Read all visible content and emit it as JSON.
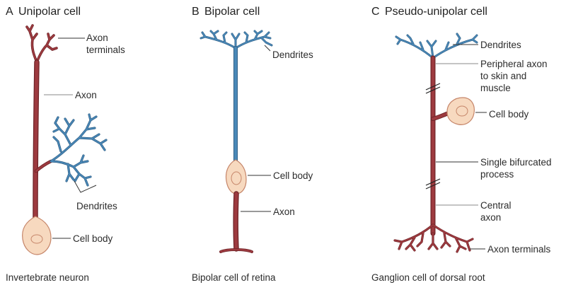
{
  "panels": [
    {
      "letter": "A",
      "title": "Unipolar cell",
      "labels": {
        "axon_terminals_1": "Axon",
        "axon_terminals_2": "terminals",
        "axon": "Axon",
        "dendrites": "Dendrites",
        "cell_body": "Cell body"
      },
      "caption": "Invertebrate neuron"
    },
    {
      "letter": "B",
      "title": "Bipolar cell",
      "labels": {
        "dendrites": "Dendrites",
        "cell_body": "Cell body",
        "axon": "Axon"
      },
      "caption": "Bipolar cell of retina"
    },
    {
      "letter": "C",
      "title": "Pseudo-unipolar cell",
      "labels": {
        "dendrites": "Dendrites",
        "peripheral_1": "Peripheral axon",
        "peripheral_2": "to skin and",
        "peripheral_3": "muscle",
        "cell_body": "Cell body",
        "single_1": "Single bifurcated",
        "single_2": "process",
        "central_1": "Central",
        "central_2": "axon",
        "axon_terminals": "Axon terminals"
      },
      "caption": "Ganglion cell of dorsal root"
    }
  ],
  "colors": {
    "axon": "#9d3a3f",
    "dendrite": "#4a89b8",
    "cell_body": "#f7d9bf"
  }
}
